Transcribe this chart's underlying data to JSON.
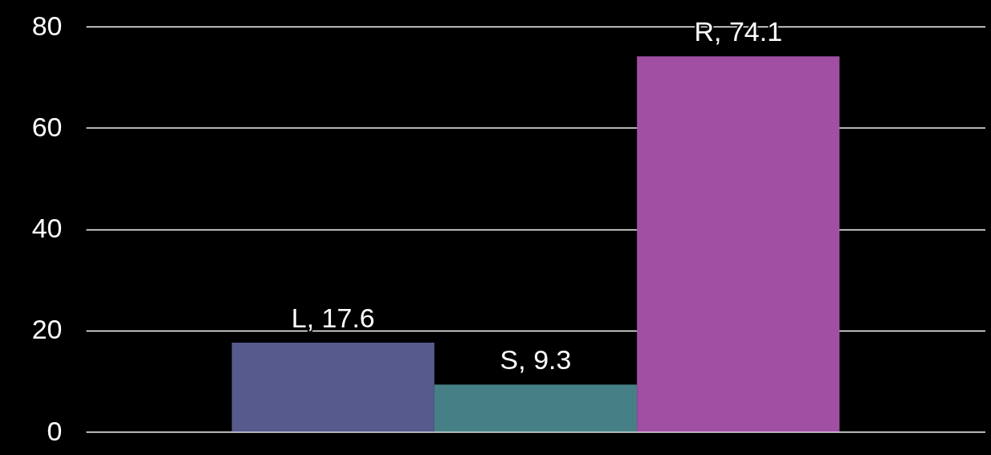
{
  "chart_data": {
    "type": "bar",
    "categories": [
      null
    ],
    "series": [
      {
        "color": "#565a8c",
        "values": [
          17.6
        ],
        "value_labels": [
          "L, 17.6"
        ]
      },
      {
        "color": "#468086",
        "values": [
          9.3
        ],
        "value_labels": [
          "S, 9.3"
        ]
      },
      {
        "color": "#a04fa3",
        "values": [
          74.1
        ],
        "value_labels": [
          "R, 74.1"
        ]
      }
    ],
    "ylim": [
      0,
      80
    ],
    "yticks": [
      0,
      20,
      40,
      60,
      80
    ],
    "grid": "y",
    "legend": false
  }
}
